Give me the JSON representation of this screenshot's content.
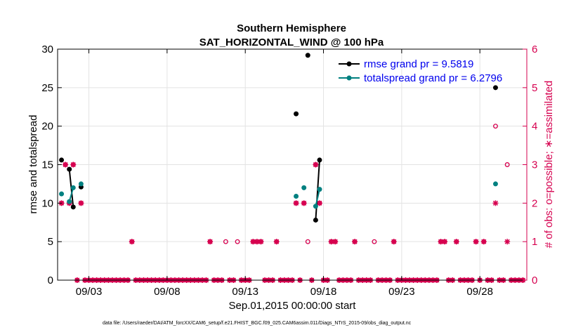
{
  "chart_data": {
    "type": "scatter",
    "title": "Southern Hemisphere",
    "subtitle": "SAT_HORIZONTAL_WIND @ 100 hPa",
    "xlabel": "Sep.01,2015 00:00:00 start",
    "ylabel": "rmse and totalspread",
    "y2label": "# of obs: o=possible; ∗=assimilated",
    "footnote": "data file: /Users/raeder/DAI/ATM_forcXX/CAM6_setup/f.e21.FHIST_BGC.f09_025.CAM6assim.011/Diags_NTrS_2015-09/obs_diag_output.nc",
    "xlim": [
      1,
      31
    ],
    "ylim": [
      0,
      30
    ],
    "y2lim": [
      0,
      6
    ],
    "x_ticks": [
      3,
      8,
      13,
      18,
      23,
      28
    ],
    "x_tick_labels": [
      "09/03",
      "09/08",
      "09/13",
      "09/18",
      "09/23",
      "09/28"
    ],
    "y_ticks": [
      0,
      5,
      10,
      15,
      20,
      25,
      30
    ],
    "y_tick_labels": [
      "0",
      "5",
      "10",
      "15",
      "20",
      "25",
      "30"
    ],
    "y2_ticks": [
      0,
      1,
      2,
      3,
      4,
      5,
      6
    ],
    "y2_tick_labels": [
      "0",
      "1",
      "2",
      "3",
      "4",
      "5",
      "6"
    ],
    "grid": true,
    "legend_position": "top-right",
    "colors": {
      "rmse": "#000000",
      "spread": "#008080",
      "obs": "#d6004f",
      "legend_text": "#0000ee",
      "grid": "#e3e3e3"
    },
    "series": [
      {
        "name": "rmse grand pr = 9.5819",
        "key": "rmse",
        "points": [
          [
            1.25,
            15.6
          ],
          [
            1.75,
            14.4
          ],
          [
            2.0,
            9.5
          ],
          [
            2.5,
            12.1
          ],
          [
            16.25,
            21.6
          ],
          [
            17.0,
            29.2
          ],
          [
            17.5,
            7.8
          ],
          [
            17.75,
            15.6
          ],
          [
            29.0,
            25.0
          ]
        ],
        "segments": [
          [
            [
              1.75,
              14.4
            ],
            [
              2.0,
              9.5
            ]
          ],
          [
            [
              17.5,
              7.8
            ],
            [
              17.75,
              15.6
            ]
          ]
        ]
      },
      {
        "name": "totalspread grand pr = 6.2796",
        "key": "spread",
        "points": [
          [
            1.25,
            11.2
          ],
          [
            1.75,
            10.2
          ],
          [
            2.0,
            12.0
          ],
          [
            2.5,
            12.5
          ],
          [
            16.25,
            10.9
          ],
          [
            16.75,
            12.0
          ],
          [
            17.5,
            9.6
          ],
          [
            17.75,
            11.8
          ],
          [
            29.0,
            12.5
          ]
        ],
        "segments": [
          [
            [
              1.75,
              10.2
            ],
            [
              2.0,
              12.0
            ]
          ],
          [
            [
              17.5,
              9.6
            ],
            [
              17.75,
              11.8
            ]
          ]
        ]
      }
    ],
    "obs_possible": [
      [
        1.25,
        2
      ],
      [
        1.5,
        3
      ],
      [
        1.75,
        2
      ],
      [
        2.0,
        3
      ],
      [
        2.5,
        2
      ],
      [
        5.75,
        1
      ],
      [
        10.75,
        1
      ],
      [
        11.75,
        1
      ],
      [
        12.5,
        1
      ],
      [
        13.5,
        1
      ],
      [
        13.75,
        1
      ],
      [
        14.0,
        1
      ],
      [
        15.0,
        1
      ],
      [
        16.25,
        2
      ],
      [
        16.75,
        2
      ],
      [
        17.0,
        1
      ],
      [
        17.5,
        3
      ],
      [
        17.75,
        2
      ],
      [
        18.5,
        1
      ],
      [
        18.75,
        1
      ],
      [
        20.0,
        1
      ],
      [
        21.25,
        1
      ],
      [
        22.5,
        1
      ],
      [
        25.5,
        1
      ],
      [
        25.75,
        1
      ],
      [
        26.5,
        1
      ],
      [
        27.75,
        1
      ],
      [
        28.25,
        1
      ],
      [
        29.0,
        4
      ],
      [
        29.75,
        3
      ]
    ],
    "obs_assimilated": [
      [
        1.25,
        2
      ],
      [
        1.5,
        3
      ],
      [
        1.75,
        2
      ],
      [
        2.0,
        3
      ],
      [
        2.5,
        2
      ],
      [
        5.75,
        1
      ],
      [
        10.75,
        1
      ],
      [
        13.5,
        1
      ],
      [
        13.75,
        1
      ],
      [
        14.0,
        1
      ],
      [
        15.0,
        1
      ],
      [
        16.25,
        2
      ],
      [
        16.75,
        2
      ],
      [
        17.5,
        3
      ],
      [
        17.75,
        2
      ],
      [
        18.5,
        1
      ],
      [
        18.75,
        1
      ],
      [
        20.0,
        1
      ],
      [
        22.5,
        1
      ],
      [
        25.5,
        1
      ],
      [
        25.75,
        1
      ],
      [
        26.5,
        1
      ],
      [
        27.75,
        1
      ],
      [
        28.25,
        1
      ],
      [
        29.0,
        2
      ],
      [
        29.75,
        1
      ]
    ]
  }
}
